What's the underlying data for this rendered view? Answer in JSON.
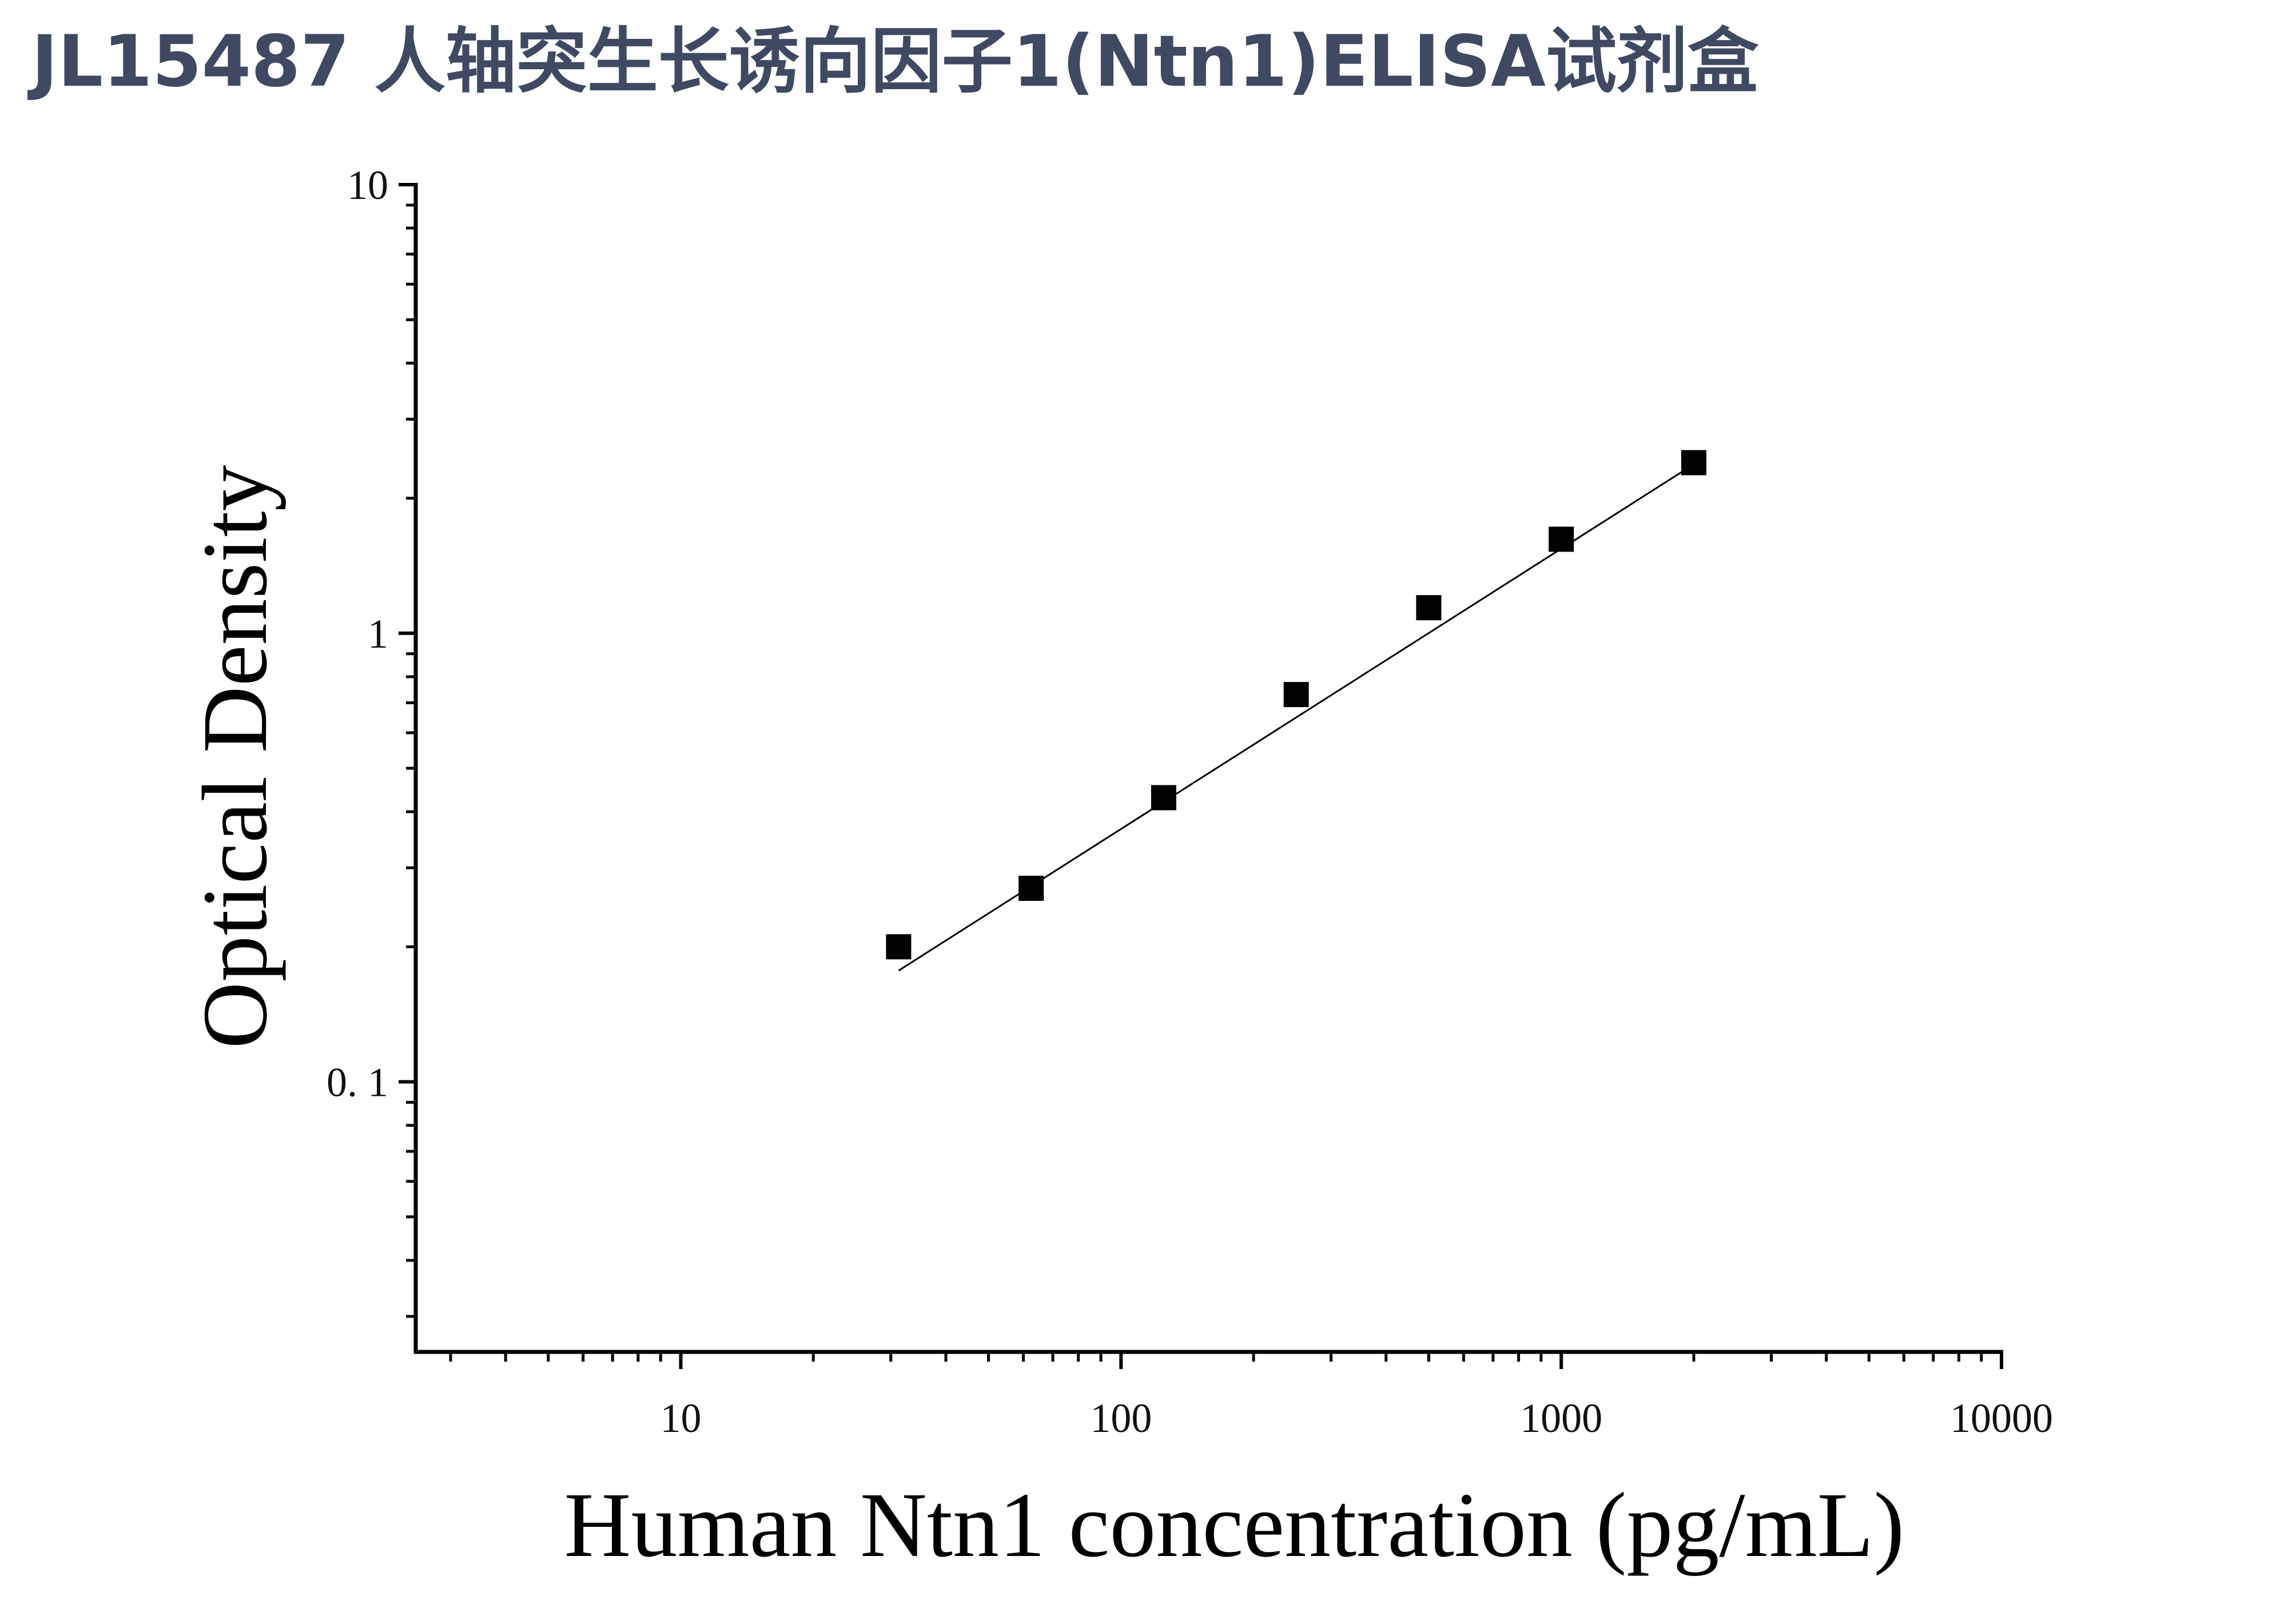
{
  "title": "JL15487 人轴突生长诱向因子1(Ntn1)ELISA试剂盒",
  "chart_data": {
    "type": "scatter",
    "xlabel": "Human Ntn1 concentration (pg/mL)",
    "ylabel": "Optical Density",
    "xscale": "log",
    "yscale": "log",
    "xlim": [
      2.5,
      10000
    ],
    "ylim": [
      0.025,
      10
    ],
    "xticks": [
      10,
      100,
      1000,
      10000
    ],
    "xtick_labels": [
      "10",
      "100",
      "1000",
      "10000"
    ],
    "yticks": [
      0.1,
      1,
      10
    ],
    "ytick_labels": [
      "0. 1",
      "1",
      "10"
    ],
    "grid": false,
    "legend": "none",
    "marker": "square",
    "marker_color": "#000000",
    "series": [
      {
        "x": [
          31.25,
          62.5,
          125,
          250,
          500,
          1000,
          2000
        ],
        "y": [
          0.2,
          0.27,
          0.43,
          0.73,
          1.14,
          1.62,
          2.4
        ]
      }
    ],
    "fit_line": {
      "x": [
        31.25,
        2000
      ],
      "y": [
        0.177,
        2.38
      ]
    }
  }
}
